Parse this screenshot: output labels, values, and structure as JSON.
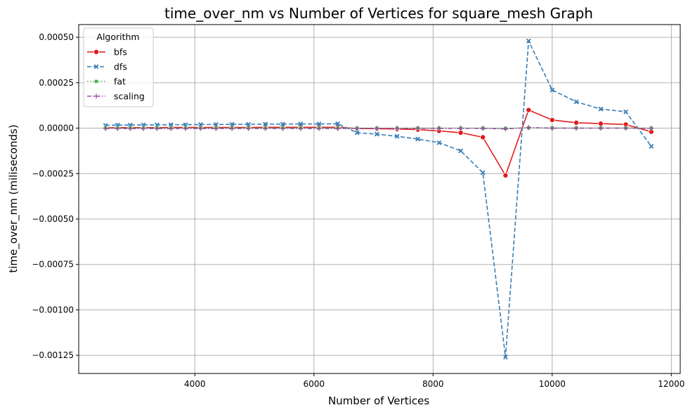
{
  "chart_data": {
    "type": "line",
    "title": "time_over_nm vs Number of Vertices for square_mesh Graph",
    "xlabel": "Number of Vertices",
    "ylabel": "time_over_nm (miliseconds)",
    "xlim": [
      2050,
      12150
    ],
    "ylim": [
      -0.00135,
      0.00057
    ],
    "xticks": [
      4000,
      6000,
      8000,
      10000,
      12000
    ],
    "yticks": [
      0.0005,
      0.00025,
      0.0,
      -0.00025,
      -0.0005,
      -0.00075,
      -0.001,
      -0.00125
    ],
    "ytick_labels": [
      "0.00050",
      "0.00025",
      "0.00000",
      "−0.00025",
      "−0.00050",
      "−0.00075",
      "−0.00100",
      "−0.00125"
    ],
    "grid": true,
    "legend": {
      "title": "Algorithm",
      "placement": "top-left"
    },
    "x": [
      2500,
      2704,
      2916,
      3136,
      3364,
      3600,
      3844,
      4096,
      4356,
      4624,
      4900,
      5184,
      5476,
      5776,
      6084,
      6400,
      6724,
      7056,
      7396,
      7744,
      8100,
      8464,
      8836,
      9216,
      9604,
      10000,
      10404,
      10816,
      11236,
      11664
    ],
    "series": [
      {
        "name": "bfs",
        "color": "#e41a1c",
        "dash": "solid",
        "marker": "circle",
        "values": [
          2e-06,
          3e-06,
          3e-06,
          3e-06,
          3e-06,
          4e-06,
          4e-06,
          4e-06,
          4e-06,
          4e-06,
          4e-06,
          5e-06,
          5e-06,
          5e-06,
          5e-06,
          5e-06,
          -2e-06,
          -3e-06,
          -5e-06,
          -8e-06,
          -1.5e-05,
          -2.5e-05,
          -5e-05,
          -0.00026,
          0.0001,
          4.5e-05,
          3e-05,
          2.5e-05,
          2e-05,
          -2e-05
        ]
      },
      {
        "name": "dfs",
        "color": "#377eb8",
        "dash": "dashed",
        "marker": "x",
        "values": [
          1.5e-05,
          1.7e-05,
          1.7e-05,
          1.8e-05,
          1.8e-05,
          1.9e-05,
          1.9e-05,
          2e-05,
          2e-05,
          2.1e-05,
          2.1e-05,
          2.2e-05,
          2.2e-05,
          2.3e-05,
          2.3e-05,
          2.4e-05,
          -2.5e-05,
          -3.3e-05,
          -4.5e-05,
          -6e-05,
          -8e-05,
          -0.000125,
          -0.000245,
          -0.00126,
          0.00048,
          0.00021,
          0.000145,
          0.000105,
          9e-05,
          -0.0001
        ]
      },
      {
        "name": "fat",
        "color": "#4daf4a",
        "dash": "dotted",
        "marker": "square",
        "values": [
          1e-06,
          1e-06,
          1e-06,
          1e-06,
          1e-06,
          1e-06,
          1e-06,
          1e-06,
          1e-06,
          1e-06,
          1e-06,
          1e-06,
          1e-06,
          1e-06,
          1e-06,
          1e-06,
          0.0,
          0.0,
          0.0,
          0.0,
          0.0,
          0.0,
          0.0,
          -2e-06,
          2e-06,
          1e-06,
          1e-06,
          1e-06,
          1e-06,
          0.0
        ]
      },
      {
        "name": "scaling",
        "color": "#984ea3",
        "dash": "dashdot",
        "marker": "plus",
        "values": [
          -2e-06,
          -2e-06,
          -2e-06,
          -2e-06,
          -2e-06,
          -2e-06,
          -2e-06,
          -2e-06,
          -2e-06,
          -2e-06,
          -2e-06,
          -2e-06,
          -2e-06,
          -2e-06,
          -2e-06,
          -2e-06,
          -1e-06,
          -1e-06,
          -1e-06,
          -1e-06,
          -1e-06,
          -1e-06,
          -1e-06,
          -4e-06,
          3e-06,
          0.0,
          0.0,
          0.0,
          0.0,
          -1e-06
        ]
      }
    ]
  }
}
